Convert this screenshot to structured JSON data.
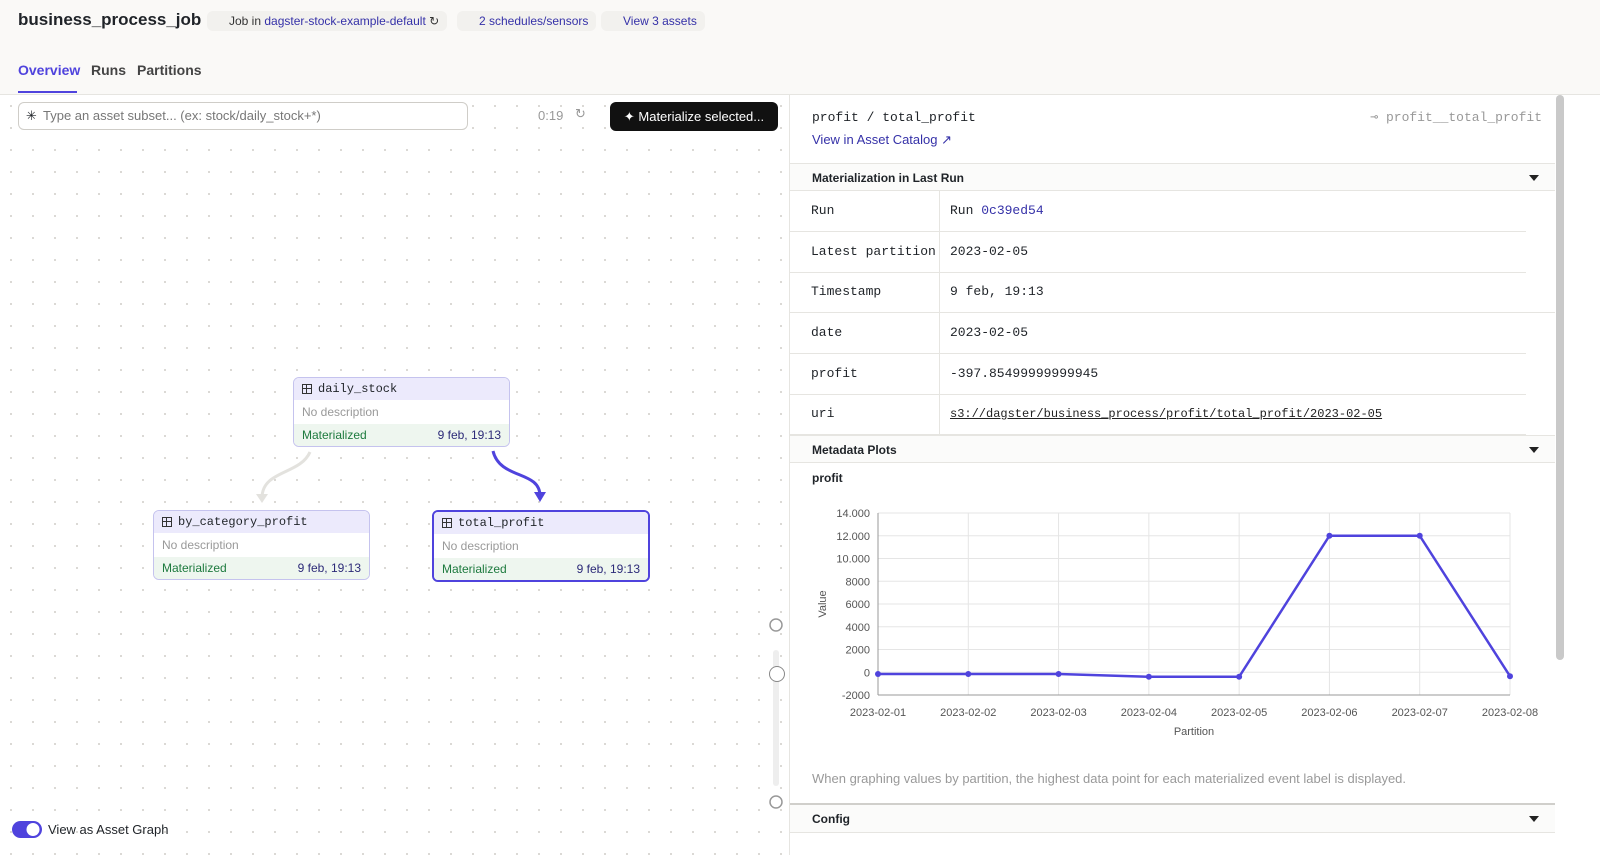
{
  "header": {
    "title": "business_process_job",
    "job_prefix": "Job in",
    "job_repo": "dagster-stock-example-default",
    "schedules": "2 schedules/sensors",
    "assets": "View 3 assets"
  },
  "tabs": [
    "Overview",
    "Runs",
    "Partitions"
  ],
  "toolbar": {
    "search_placeholder": "Type an asset subset... (ex: stock/daily_stock+*)",
    "timer": "0:19",
    "materialize": "Materialize selected..."
  },
  "nodes": [
    {
      "label": "daily_stock",
      "description": "No description",
      "status": "Materialized",
      "time": "9 feb, 19:13"
    },
    {
      "label": "by_category_profit",
      "description": "No description",
      "status": "Materialized",
      "time": "9 feb, 19:13"
    },
    {
      "label": "total_profit",
      "description": "No description",
      "status": "Materialized",
      "time": "9 feb, 19:13"
    }
  ],
  "toggle": "View as Asset Graph",
  "panel": {
    "asset_path": "profit / total_profit",
    "asset_key": "profit__total_profit",
    "catalog_link": "View in Asset Catalog",
    "section_materialization": "Materialization in Last Run",
    "rows": [
      {
        "label": "Run",
        "value": "Run",
        "link": "0c39ed54"
      },
      {
        "label": "Latest partition",
        "value": "2023-02-05"
      },
      {
        "label": "Timestamp",
        "value": "9 feb, 19:13"
      },
      {
        "label": "date",
        "value": "2023-02-05"
      },
      {
        "label": "profit",
        "value": "-397.85499999999945"
      },
      {
        "label": "uri",
        "value": "s3://dagster/business_process/profit/total_profit/2023-02-05"
      }
    ],
    "section_plots": "Metadata Plots",
    "chart": {
      "type": "line",
      "title": "profit",
      "xlabel": "Partition",
      "ylabel": "Value",
      "categories": [
        "2023-02-01",
        "2023-02-02",
        "2023-02-03",
        "2023-02-04",
        "2023-02-05",
        "2023-02-06",
        "2023-02-07",
        "2023-02-08"
      ],
      "values": [
        -150,
        -150,
        -150,
        -400,
        -398,
        12000,
        12000,
        -350
      ],
      "color": "#4f43dd",
      "ylim": [
        -2000,
        14000
      ],
      "yticks": [
        -2000,
        0,
        2000,
        4000,
        6000,
        8000,
        {
          "value": 10000,
          "label": "10.000"
        },
        {
          "value": 12000,
          "label": "12.000"
        },
        {
          "value": 14000,
          "label": "14.000"
        }
      ],
      "grid": true
    },
    "note": "When graphing values by partition, the highest data point for each materialized event label is displayed.",
    "section_config": "Config"
  }
}
